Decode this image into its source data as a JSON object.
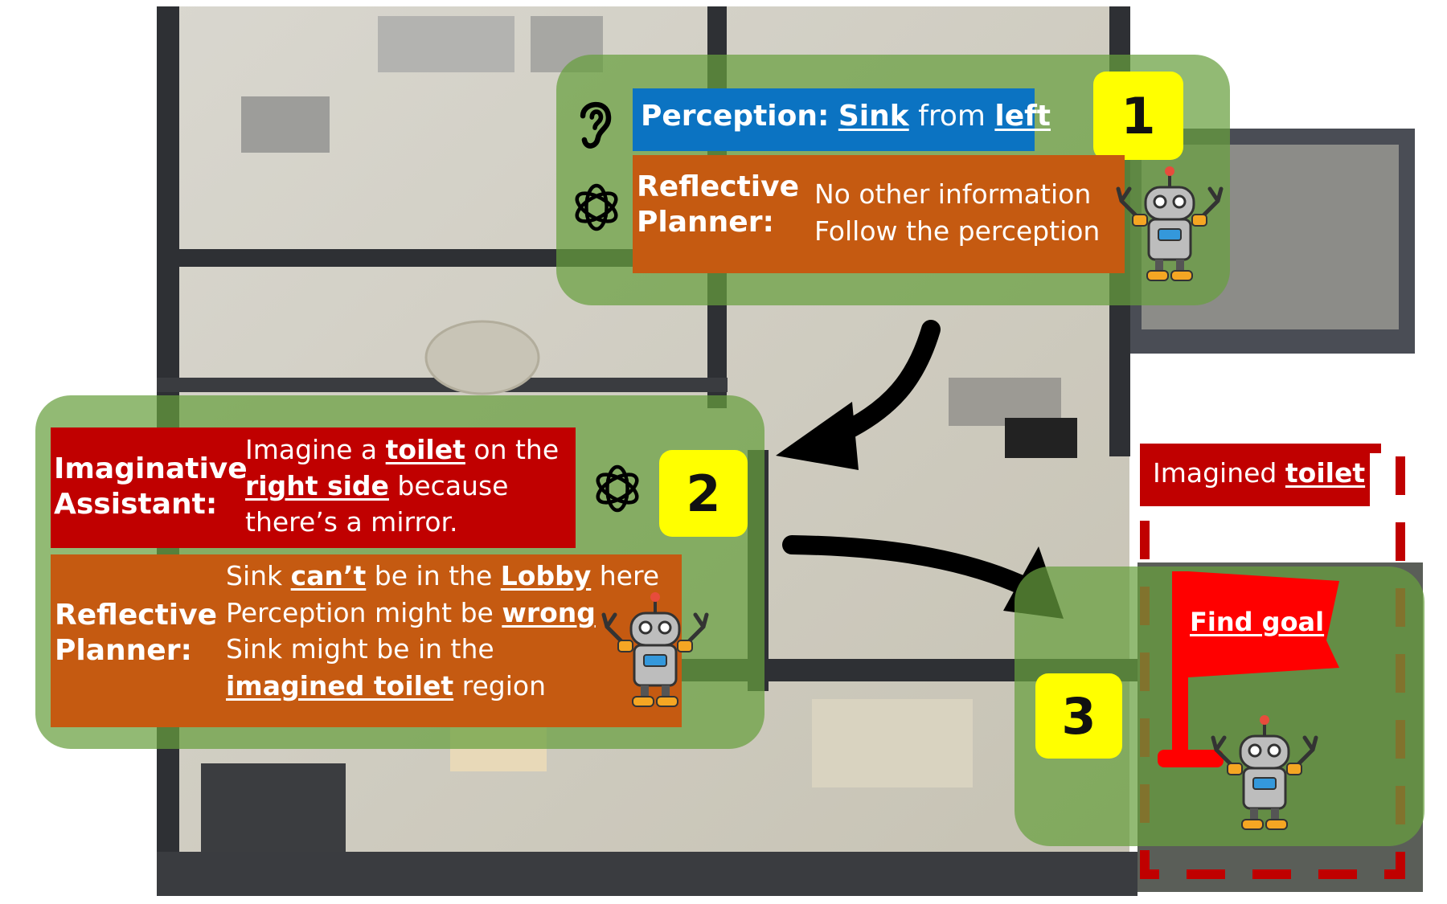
{
  "steps": [
    "1",
    "2",
    "3"
  ],
  "step1": {
    "perception_label": "Perception:",
    "perception_object": "Sink",
    "perception_from": "from",
    "perception_direction": "left",
    "planner_label_1": "Reflective",
    "planner_label_2": "Planner:",
    "planner_line1": "No other information",
    "planner_line2": "Follow the perception"
  },
  "step2": {
    "assistant_label_1": "Imaginative",
    "assistant_label_2": "Assistant:",
    "assistant_l1_a": "Imagine a",
    "assistant_l1_b": "toilet",
    "assistant_l1_c": "on the",
    "assistant_l2_a": "right side",
    "assistant_l2_b": "because",
    "assistant_l3": "there’s a mirror.",
    "planner_label_1": "Reflective",
    "planner_label_2": "Planner:",
    "planner_l1_a": "Sink",
    "planner_l1_b": "can’t",
    "planner_l1_c": "be in the",
    "planner_l1_d": "Lobby",
    "planner_l1_e": "here",
    "planner_l2_a": "Perception might be",
    "planner_l2_b": "wrong",
    "planner_l3": "Sink might be in the",
    "planner_l4_a": "imagined toilet",
    "planner_l4_b": "region"
  },
  "step3": {
    "imagined_a": "Imagined",
    "imagined_b": "toilet",
    "flag_label": "Find goal"
  },
  "icons": [
    "ear-icon",
    "openai-logo-icon",
    "robot-icon",
    "arrow-icon",
    "goal-flag-icon"
  ],
  "colors": {
    "green_region": "#68a03e",
    "perception_box": "#0b73c2",
    "planner_box": "#c55a11",
    "imagination_box": "#c00000",
    "badge": "#ffff00",
    "flag": "#ff0000",
    "dashed_region": "#c00000"
  }
}
